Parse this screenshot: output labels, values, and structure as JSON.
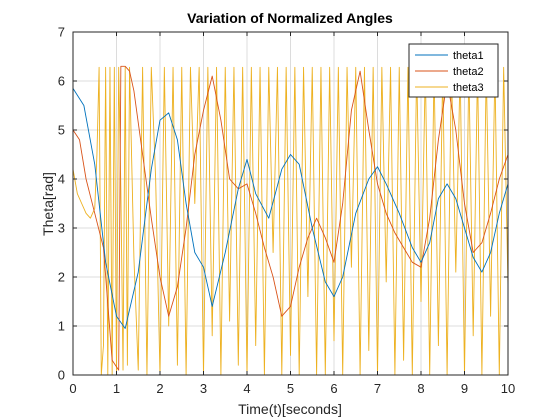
{
  "chart_data": {
    "type": "line",
    "title": "Variation of Normalized Angles",
    "xlabel": "Time(t)[seconds]",
    "ylabel": "Theta[rad]",
    "xlim": [
      0,
      10
    ],
    "ylim": [
      0,
      7
    ],
    "xticks": [
      "0",
      "1",
      "2",
      "3",
      "4",
      "5",
      "6",
      "7",
      "8",
      "9",
      "10"
    ],
    "yticks": [
      "0",
      "1",
      "2",
      "3",
      "4",
      "5",
      "6",
      "7"
    ],
    "grid": true,
    "legend_position": "top-right",
    "series": [
      {
        "name": "theta1",
        "color": "#0072BD",
        "x": [
          0,
          0.25,
          0.5,
          0.75,
          1.0,
          1.2,
          1.5,
          1.8,
          2.0,
          2.2,
          2.4,
          2.6,
          2.8,
          3.0,
          3.2,
          3.5,
          3.8,
          4.0,
          4.2,
          4.5,
          4.8,
          5.0,
          5.2,
          5.5,
          5.8,
          6.0,
          6.2,
          6.5,
          6.8,
          7.0,
          7.2,
          7.5,
          7.8,
          8.0,
          8.2,
          8.4,
          8.6,
          8.8,
          9.0,
          9.2,
          9.4,
          9.6,
          9.8,
          10.0
        ],
        "y": [
          5.85,
          5.5,
          4.3,
          2.3,
          1.2,
          0.95,
          2.1,
          4.2,
          5.2,
          5.35,
          4.8,
          3.5,
          2.5,
          2.2,
          1.4,
          2.5,
          3.8,
          4.4,
          3.7,
          3.2,
          4.2,
          4.5,
          4.3,
          3.0,
          1.9,
          1.6,
          2.0,
          3.3,
          4.0,
          4.25,
          3.9,
          3.3,
          2.6,
          2.3,
          2.7,
          3.6,
          3.9,
          3.6,
          3.0,
          2.4,
          2.1,
          2.5,
          3.3,
          3.9
        ]
      },
      {
        "name": "theta2",
        "color": "#D95319",
        "x": [
          0,
          0.15,
          0.3,
          0.5,
          0.7,
          0.9,
          1.05,
          1.1,
          1.2,
          1.3,
          1.4,
          1.6,
          1.8,
          2.0,
          2.2,
          2.4,
          2.6,
          2.8,
          3.0,
          3.2,
          3.4,
          3.6,
          3.8,
          4.0,
          4.2,
          4.4,
          4.6,
          4.8,
          5.0,
          5.2,
          5.4,
          5.6,
          5.8,
          6.0,
          6.2,
          6.4,
          6.6,
          6.8,
          7.0,
          7.2,
          7.4,
          7.6,
          7.8,
          8.0,
          8.2,
          8.4,
          8.6,
          8.8,
          9.0,
          9.2,
          9.4,
          9.6,
          9.8,
          10.0
        ],
        "y": [
          5.0,
          4.8,
          4.0,
          3.3,
          2.6,
          0.3,
          0.1,
          6.3,
          6.3,
          6.2,
          5.8,
          4.5,
          3.2,
          2.0,
          1.2,
          1.8,
          3.0,
          4.5,
          5.4,
          6.1,
          5.2,
          4.0,
          3.8,
          3.9,
          3.3,
          2.6,
          2.0,
          1.2,
          1.4,
          2.2,
          2.8,
          3.2,
          2.8,
          2.3,
          3.5,
          5.4,
          6.2,
          5.0,
          3.9,
          3.3,
          2.9,
          2.6,
          2.3,
          2.2,
          3.2,
          4.8,
          6.0,
          5.0,
          3.5,
          2.5,
          2.7,
          3.3,
          4.0,
          4.5
        ]
      },
      {
        "name": "theta3",
        "color": "#EDB120",
        "x": [
          0,
          0.1,
          0.2,
          0.3,
          0.4,
          0.5,
          0.55,
          0.6,
          0.65,
          0.7,
          0.75,
          0.8,
          0.85,
          0.9,
          0.95,
          1.0,
          1.05,
          1.1,
          1.15,
          1.2,
          1.25,
          1.3,
          1.4,
          1.5,
          1.6,
          1.7,
          1.8,
          1.9,
          2.0,
          2.1,
          2.2,
          2.3,
          2.4,
          2.5,
          2.6,
          2.7,
          2.8,
          2.9,
          3.0,
          3.1,
          3.2,
          3.3,
          3.4,
          3.5,
          3.6,
          3.7,
          3.8,
          3.9,
          4.0,
          4.1,
          4.2,
          4.3,
          4.4,
          4.5,
          4.6,
          4.7,
          4.8,
          4.9,
          5.0,
          5.1,
          5.2,
          5.3,
          5.4,
          5.5,
          5.6,
          5.7,
          5.8,
          5.9,
          6.0,
          6.1,
          6.2,
          6.3,
          6.4,
          6.5,
          6.6,
          6.7,
          6.8,
          6.9,
          7.0,
          7.1,
          7.2,
          7.3,
          7.4,
          7.5,
          7.6,
          7.7,
          7.8,
          7.9,
          8.0,
          8.1,
          8.2,
          8.3,
          8.4,
          8.5,
          8.6,
          8.7,
          8.8,
          8.9,
          9.0,
          9.1,
          9.2,
          9.3,
          9.4,
          9.5,
          9.6,
          9.7,
          9.8,
          9.9,
          10.0
        ],
        "y": [
          4.2,
          3.7,
          3.5,
          3.3,
          3.2,
          3.4,
          4.5,
          6.28,
          0.0,
          0.6,
          6.28,
          0.0,
          6.28,
          0.0,
          6.28,
          0.0,
          6.28,
          3.8,
          0.1,
          6.28,
          0.2,
          6.28,
          2.4,
          0.1,
          6.28,
          0.0,
          6.28,
          4.0,
          0.0,
          6.28,
          1.0,
          6.28,
          0.2,
          6.28,
          0.0,
          6.28,
          3.5,
          6.28,
          0.0,
          6.28,
          0.8,
          6.28,
          0.0,
          6.28,
          1.1,
          6.28,
          0.2,
          6.28,
          0.0,
          6.28,
          0.6,
          6.28,
          0.0,
          6.28,
          2.5,
          6.28,
          0.0,
          6.28,
          0.4,
          6.28,
          0.0,
          6.28,
          1.6,
          6.28,
          0.0,
          6.28,
          0.0,
          6.28,
          0.7,
          6.28,
          0.0,
          6.28,
          2.2,
          6.28,
          0.0,
          6.28,
          0.5,
          6.28,
          0.0,
          6.28,
          1.9,
          6.28,
          0.0,
          6.28,
          0.3,
          6.28,
          0.0,
          6.28,
          1.5,
          6.28,
          0.0,
          6.28,
          0.6,
          6.28,
          0.0,
          6.28,
          2.1,
          6.28,
          0.0,
          6.28,
          0.8,
          6.28,
          0.0,
          6.28,
          1.2,
          6.28,
          0.0,
          6.28,
          1.8
        ]
      }
    ]
  }
}
